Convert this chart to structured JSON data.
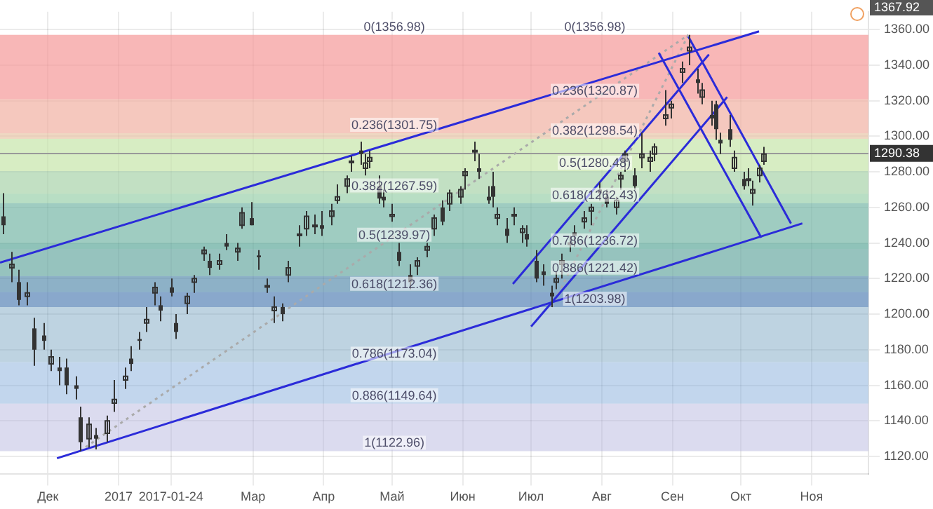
{
  "chart_data": {
    "type": "candlestick",
    "grid": true,
    "legend": false,
    "xlim": [
      "2016-11-10",
      "2017-11-26"
    ],
    "xticks": [
      {
        "value": "2016-12-01",
        "label": "Дек"
      },
      {
        "value": "2017-01-01",
        "label": "2017"
      },
      {
        "value": "2017-01-24",
        "label": "2017-01-24"
      },
      {
        "value": "2017-03-01",
        "label": "Мар"
      },
      {
        "value": "2017-04-01",
        "label": "Апр"
      },
      {
        "value": "2017-05-01",
        "label": "Май"
      },
      {
        "value": "2017-06-01",
        "label": "Июн"
      },
      {
        "value": "2017-07-01",
        "label": "Июл"
      },
      {
        "value": "2017-08-01",
        "label": "Авг"
      },
      {
        "value": "2017-09-01",
        "label": "Сен"
      },
      {
        "value": "2017-10-01",
        "label": "Окт"
      },
      {
        "value": "2017-11-01",
        "label": "Ноя"
      }
    ],
    "ylim": [
      1110,
      1370
    ],
    "yticks": [
      {
        "value": 1120,
        "label": "1120.00"
      },
      {
        "value": 1140,
        "label": "1140.00"
      },
      {
        "value": 1160,
        "label": "1160.00"
      },
      {
        "value": 1180,
        "label": "1180.00"
      },
      {
        "value": 1200,
        "label": "1200.00"
      },
      {
        "value": 1220,
        "label": "1220.00"
      },
      {
        "value": 1240,
        "label": "1240.00"
      },
      {
        "value": 1260,
        "label": "1260.00"
      },
      {
        "value": 1280,
        "label": "1280.00"
      },
      {
        "value": 1300,
        "label": "1300.00"
      },
      {
        "value": 1320,
        "label": "1320.00"
      },
      {
        "value": 1340,
        "label": "1340.00"
      },
      {
        "value": 1360,
        "label": "1360.00"
      }
    ],
    "series": [
      {
        "type": "candlestick",
        "color": "#333333",
        "x": [
          "2016-11-11",
          "2016-11-15",
          "2016-11-18",
          "2016-11-22",
          "2016-11-25",
          "2016-11-29",
          "2016-12-02",
          "2016-12-06",
          "2016-12-09",
          "2016-12-13",
          "2016-12-15",
          "2016-12-19",
          "2016-12-22",
          "2016-12-27",
          "2016-12-30",
          "2017-01-04",
          "2017-01-06",
          "2017-01-10",
          "2017-01-13",
          "2017-01-17",
          "2017-01-19",
          "2017-01-24",
          "2017-01-26",
          "2017-01-31",
          "2017-02-03",
          "2017-02-07",
          "2017-02-10",
          "2017-02-14",
          "2017-02-17",
          "2017-02-22",
          "2017-02-24",
          "2017-02-28",
          "2017-03-03",
          "2017-03-07",
          "2017-03-10",
          "2017-03-14",
          "2017-03-16",
          "2017-03-21",
          "2017-03-24",
          "2017-03-28",
          "2017-03-31",
          "2017-04-04",
          "2017-04-07",
          "2017-04-11",
          "2017-04-13",
          "2017-04-17",
          "2017-04-19",
          "2017-04-21",
          "2017-04-25",
          "2017-04-27",
          "2017-05-01",
          "2017-05-04",
          "2017-05-09",
          "2017-05-12",
          "2017-05-16",
          "2017-05-19",
          "2017-05-23",
          "2017-05-26",
          "2017-05-31",
          "2017-06-02",
          "2017-06-06",
          "2017-06-08",
          "2017-06-12",
          "2017-06-14",
          "2017-06-16",
          "2017-06-20",
          "2017-06-23",
          "2017-06-27",
          "2017-06-29",
          "2017-07-03",
          "2017-07-06",
          "2017-07-10",
          "2017-07-12",
          "2017-07-14",
          "2017-07-18",
          "2017-07-20",
          "2017-07-24",
          "2017-07-27",
          "2017-07-31",
          "2017-08-03",
          "2017-08-07",
          "2017-08-09",
          "2017-08-11",
          "2017-08-15",
          "2017-08-18",
          "2017-08-22",
          "2017-08-24",
          "2017-08-29",
          "2017-08-31",
          "2017-09-05",
          "2017-09-08",
          "2017-09-12",
          "2017-09-14",
          "2017-09-18",
          "2017-09-20",
          "2017-09-22",
          "2017-09-26",
          "2017-09-28",
          "2017-10-02",
          "2017-10-04",
          "2017-10-06",
          "2017-10-09",
          "2017-10-11"
        ],
        "ohlc": [
          [
            1255,
            1268,
            1245,
            1250
          ],
          [
            1226,
            1235,
            1218,
            1228
          ],
          [
            1218,
            1225,
            1205,
            1208
          ],
          [
            1210,
            1218,
            1205,
            1212
          ],
          [
            1192,
            1198,
            1171,
            1180
          ],
          [
            1188,
            1195,
            1180,
            1185
          ],
          [
            1172,
            1180,
            1168,
            1176
          ],
          [
            1170,
            1176,
            1160,
            1168
          ],
          [
            1170,
            1175,
            1155,
            1160
          ],
          [
            1160,
            1165,
            1152,
            1158
          ],
          [
            1142,
            1148,
            1123,
            1128
          ],
          [
            1130,
            1142,
            1125,
            1138
          ],
          [
            1132,
            1136,
            1124,
            1130
          ],
          [
            1133,
            1143,
            1128,
            1140
          ],
          [
            1150,
            1163,
            1145,
            1152
          ],
          [
            1163,
            1170,
            1158,
            1165
          ],
          [
            1175,
            1182,
            1168,
            1172
          ],
          [
            1186,
            1190,
            1180,
            1185
          ],
          [
            1195,
            1204,
            1190,
            1197
          ],
          [
            1212,
            1218,
            1205,
            1215
          ],
          [
            1205,
            1210,
            1196,
            1202
          ],
          [
            1215,
            1220,
            1210,
            1212
          ],
          [
            1195,
            1200,
            1186,
            1190
          ],
          [
            1206,
            1212,
            1200,
            1210
          ],
          [
            1218,
            1222,
            1212,
            1220
          ],
          [
            1234,
            1238,
            1230,
            1236
          ],
          [
            1230,
            1234,
            1222,
            1226
          ],
          [
            1228,
            1234,
            1225,
            1230
          ],
          [
            1240,
            1245,
            1236,
            1238
          ],
          [
            1235,
            1240,
            1230,
            1237
          ],
          [
            1250,
            1260,
            1248,
            1257
          ],
          [
            1254,
            1263,
            1250,
            1250
          ],
          [
            1233,
            1236,
            1225,
            1232
          ],
          [
            1216,
            1220,
            1212,
            1216
          ],
          [
            1202,
            1210,
            1195,
            1204
          ],
          [
            1204,
            1206,
            1196,
            1200
          ],
          [
            1222,
            1230,
            1218,
            1226
          ],
          [
            1245,
            1250,
            1238,
            1245
          ],
          [
            1248,
            1258,
            1244,
            1255
          ],
          [
            1250,
            1256,
            1245,
            1250
          ],
          [
            1250,
            1258,
            1244,
            1248
          ],
          [
            1255,
            1262,
            1250,
            1258
          ],
          [
            1264,
            1273,
            1262,
            1266
          ],
          [
            1272,
            1278,
            1268,
            1276
          ],
          [
            1286,
            1289,
            1280,
            1286
          ],
          [
            1292,
            1297,
            1284,
            1290
          ],
          [
            1282,
            1290,
            1278,
            1285
          ],
          [
            1286,
            1292,
            1282,
            1288
          ],
          [
            1272,
            1278,
            1262,
            1265
          ],
          [
            1266,
            1270,
            1260,
            1264
          ],
          [
            1255,
            1262,
            1252,
            1256
          ],
          [
            1235,
            1240,
            1227,
            1230
          ],
          [
            1222,
            1228,
            1214,
            1218
          ],
          [
            1227,
            1232,
            1222,
            1230
          ],
          [
            1236,
            1240,
            1232,
            1238
          ],
          [
            1248,
            1256,
            1244,
            1254
          ],
          [
            1260,
            1264,
            1250,
            1252
          ],
          [
            1262,
            1270,
            1258,
            1268
          ],
          [
            1266,
            1272,
            1262,
            1270
          ],
          [
            1278,
            1282,
            1270,
            1280
          ],
          [
            1292,
            1297,
            1286,
            1292
          ],
          [
            1282,
            1290,
            1276,
            1280
          ],
          [
            1266,
            1272,
            1262,
            1264
          ],
          [
            1272,
            1280,
            1260,
            1266
          ],
          [
            1254,
            1260,
            1250,
            1256
          ],
          [
            1248,
            1254,
            1240,
            1244
          ],
          [
            1256,
            1260,
            1250,
            1256
          ],
          [
            1246,
            1250,
            1240,
            1248
          ],
          [
            1245,
            1250,
            1238,
            1242
          ],
          [
            1230,
            1236,
            1218,
            1220
          ],
          [
            1224,
            1228,
            1216,
            1222
          ],
          [
            1212,
            1216,
            1204,
            1210
          ],
          [
            1218,
            1224,
            1214,
            1220
          ],
          [
            1228,
            1234,
            1220,
            1230
          ],
          [
            1240,
            1244,
            1235,
            1240
          ],
          [
            1246,
            1250,
            1238,
            1244
          ],
          [
            1252,
            1258,
            1248,
            1254
          ],
          [
            1258,
            1262,
            1250,
            1260
          ],
          [
            1270,
            1274,
            1264,
            1268
          ],
          [
            1266,
            1270,
            1260,
            1262
          ],
          [
            1260,
            1266,
            1256,
            1264
          ],
          [
            1276,
            1280,
            1270,
            1278
          ],
          [
            1286,
            1292,
            1280,
            1290
          ],
          [
            1278,
            1282,
            1270,
            1272
          ],
          [
            1288,
            1302,
            1282,
            1290
          ],
          [
            1286,
            1292,
            1280,
            1288
          ],
          [
            1290,
            1296,
            1286,
            1294
          ],
          [
            1310,
            1326,
            1306,
            1312
          ],
          [
            1316,
            1320,
            1310,
            1318
          ],
          [
            1336,
            1342,
            1330,
            1338
          ],
          [
            1348,
            1357,
            1340,
            1350
          ],
          [
            1332,
            1338,
            1324,
            1330
          ],
          [
            1322,
            1330,
            1318,
            1326
          ],
          [
            1312,
            1320,
            1306,
            1310
          ],
          [
            1318,
            1320,
            1298,
            1304
          ],
          [
            1298,
            1302,
            1290,
            1296
          ],
          [
            1304,
            1312,
            1294,
            1298
          ],
          [
            1282,
            1292,
            1280,
            1288
          ],
          [
            1276,
            1280,
            1270,
            1272
          ],
          [
            1276,
            1282,
            1272,
            1276
          ],
          [
            1268,
            1275,
            1261,
            1270
          ],
          [
            1278,
            1284,
            1274,
            1282
          ],
          [
            1286,
            1294,
            1284,
            1290
          ]
        ]
      },
      {
        "type": "line",
        "color": "#2b2bd9",
        "x": [
          "2016-11-10",
          "2017-10-09"
        ],
        "values": [
          1229,
          1359
        ]
      },
      {
        "type": "line",
        "color": "#2b2bd9",
        "x": [
          "2016-12-05",
          "2017-10-28"
        ],
        "values": [
          1119,
          1251
        ]
      },
      {
        "type": "line",
        "color": "#2b2bd9",
        "x": [
          "2017-06-23",
          "2017-09-17"
        ],
        "values": [
          1217,
          1346
        ]
      },
      {
        "type": "line",
        "color": "#2b2bd9",
        "x": [
          "2017-07-01",
          "2017-09-25"
        ],
        "values": [
          1193,
          1322
        ]
      },
      {
        "type": "line",
        "color": "#2b2bd9",
        "x": [
          "2017-08-26",
          "2017-10-10"
        ],
        "values": [
          1347,
          1243
        ]
      },
      {
        "type": "line",
        "color": "#2b2bd9",
        "x": [
          "2017-09-08",
          "2017-10-23"
        ],
        "values": [
          1356,
          1251
        ]
      },
      {
        "type": "line",
        "color": "#aaaaaa",
        "line_style": "dotted",
        "x": [
          "2016-12-15",
          "2017-09-08"
        ],
        "values": [
          1123,
          1357
        ]
      },
      {
        "type": "line",
        "color": "#aaaaaa",
        "line_style": "dotted",
        "x": [
          "2017-07-10",
          "2017-09-08"
        ],
        "values": [
          1204,
          1357
        ]
      }
    ],
    "bands": [
      {
        "axis": "y",
        "from": 1301.75,
        "to": 1356.98,
        "color": "#ffb3b3"
      },
      {
        "axis": "y",
        "from": 1267.59,
        "to": 1301.75,
        "color": "#e6edc4"
      },
      {
        "axis": "y",
        "from": 1239.97,
        "to": 1267.59,
        "color": "#bfe6c6"
      },
      {
        "axis": "y",
        "from": 1212.36,
        "to": 1239.97,
        "color": "#7fc2a8"
      },
      {
        "axis": "y",
        "from": 1173.04,
        "to": 1212.36,
        "color": "#6f9dbd"
      },
      {
        "axis": "y",
        "from": 1149.64,
        "to": 1173.04,
        "color": "#78a4d6"
      },
      {
        "axis": "y",
        "from": 1122.96,
        "to": 1149.64,
        "color": "#b0b0dc"
      },
      {
        "axis": "y",
        "from": 1320.87,
        "to": 1356.98,
        "color": "#f08a8a"
      },
      {
        "axis": "y",
        "from": 1298.54,
        "to": 1320.87,
        "color": "#e8b098"
      },
      {
        "axis": "y",
        "from": 1280.48,
        "to": 1298.54,
        "color": "#b4e09c"
      },
      {
        "axis": "y",
        "from": 1262.43,
        "to": 1280.48,
        "color": "#86c49c"
      },
      {
        "axis": "y",
        "from": 1236.72,
        "to": 1262.43,
        "color": "#4e9c94"
      },
      {
        "axis": "y",
        "from": 1221.42,
        "to": 1236.72,
        "color": "#5e9ca0"
      },
      {
        "axis": "y",
        "from": 1203.98,
        "to": 1221.42,
        "color": "#4a74b4"
      }
    ],
    "ref_lines": [
      {
        "axis": "y",
        "value": 1290.38,
        "label": "1290.38",
        "color": "#999999"
      }
    ],
    "annotations": [
      {
        "text": "0(1356.98)",
        "x": "2017-05-02",
        "y": 1356.98
      },
      {
        "text": "0.236(1301.75)",
        "x": "2017-05-02",
        "y": 1301.75
      },
      {
        "text": "0.382(1267.59)",
        "x": "2017-05-02",
        "y": 1267.59
      },
      {
        "text": "0.5(1239.97)",
        "x": "2017-05-02",
        "y": 1239.97
      },
      {
        "text": "0.618(1212.36)",
        "x": "2017-05-02",
        "y": 1212.36
      },
      {
        "text": "0.786(1173.04)",
        "x": "2017-05-02",
        "y": 1173.04
      },
      {
        "text": "0.886(1149.64)",
        "x": "2017-05-02",
        "y": 1149.64
      },
      {
        "text": "1(1122.96)",
        "x": "2017-05-02",
        "y": 1122.96
      },
      {
        "text": "0(1356.98)",
        "x": "2017-07-29",
        "y": 1356.98
      },
      {
        "text": "0.236(1320.87)",
        "x": "2017-07-29",
        "y": 1320.87
      },
      {
        "text": "0.382(1298.54)",
        "x": "2017-07-29",
        "y": 1298.54
      },
      {
        "text": "0.5(1280.48)",
        "x": "2017-07-29",
        "y": 1280.48
      },
      {
        "text": "0.618(1262.43)",
        "x": "2017-07-29",
        "y": 1262.43
      },
      {
        "text": "0.786(1236.72)",
        "x": "2017-07-29",
        "y": 1236.72
      },
      {
        "text": "0.886(1221.42)",
        "x": "2017-07-29",
        "y": 1221.42
      },
      {
        "text": "1(1203.98)",
        "x": "2017-07-29",
        "y": 1203.98
      },
      "1367.92"
    ]
  }
}
